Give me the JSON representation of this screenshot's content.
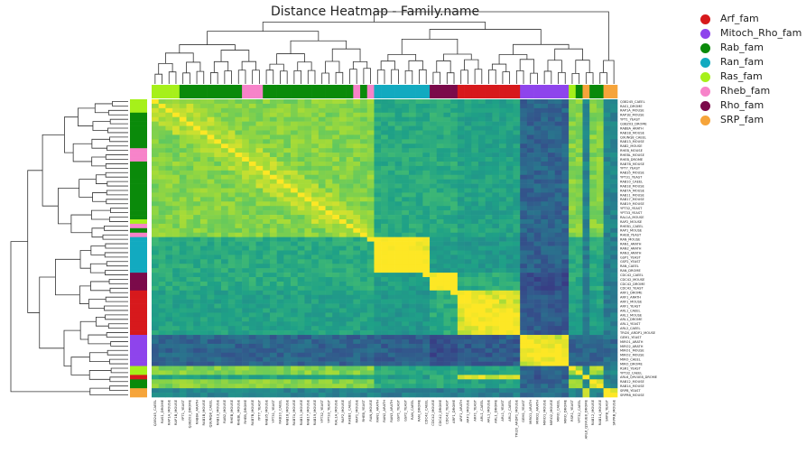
{
  "chart_data": {
    "type": "heatmap",
    "title": "Distance Heatmap - Family.name",
    "legend": {
      "placement": "top-right",
      "entries": [
        {
          "name": "Arf_fam",
          "color": "#d7191c"
        },
        {
          "name": "Mitoch_Rho_fam",
          "color": "#8e44ec"
        },
        {
          "name": "Rab_fam",
          "color": "#0a8a0a"
        },
        {
          "name": "Ran_fam",
          "color": "#12aac0"
        },
        {
          "name": "Ras_fam",
          "color": "#a6f01a"
        },
        {
          "name": "Rheb_fam",
          "color": "#f783c9"
        },
        {
          "name": "Rho_fam",
          "color": "#7b0a4a"
        },
        {
          "name": "SRP_fam",
          "color": "#f6a43a"
        }
      ]
    },
    "row_labels": [
      "Q38245_CAEEL",
      "RAS1_DROME",
      "RAP1A_MOUSE",
      "RAP1B_MOUSE",
      "YPT1_YEAST",
      "Q38Z03_DROME",
      "RAB8A_ARATH",
      "RAB1B_MOUSE",
      "Q9UNQ8_CAEEL",
      "RAB13_MOUSE",
      "RAB2_MOUSE",
      "RHEB_MOUSE",
      "RHEBL_MOUSE",
      "RHEB_DROME",
      "RAB7B_MOUSE",
      "YPT7_YEAST",
      "RAB35_MOUSE",
      "YPT31_YEAST",
      "RAB10_CAEEL",
      "RAB18_MOUSE",
      "RAB7A_MOUSE",
      "RAB11_MOUSE",
      "RAB17_MOUSE",
      "RAB19_MOUSE",
      "YPT32_YEAST",
      "YPT33_YEAST",
      "RAL1A_MOUSE",
      "RAP2_MOUSE",
      "RHEB1_CAEEL",
      "RAP1_MOUSE",
      "RHEB_YEAST",
      "RAN_MOUSE",
      "RAN1_ARATH",
      "RAN2_ARATH",
      "RAN3_ARATH",
      "GSP1_YEAST",
      "GSP2_YEAST",
      "RAN_CAEEL",
      "RAN_DROME",
      "CDC42_CAEEL",
      "CDC42_MOUSE",
      "CDC42_DROME",
      "CDC42_YEAST",
      "ARF1_DROME",
      "ARF1_ARATH",
      "ARF1_MOUSE",
      "ARF1_YEAST",
      "ARL1_CAEEL",
      "ARL1_MOUSE",
      "ARL1_DROME",
      "ARL1_YEAST",
      "ARL2_CAEEL",
      "TRI20_ARDP1_MOUSE",
      "GEM1_YEAST",
      "MIRO1_ARATH",
      "MIRO2_ARATH",
      "MIRO1_MOUSE",
      "MIRO2_MOUSE",
      "MIRO_CAEEL",
      "MIRO_DROME",
      "RSR1_YEAST",
      "YPT32_CAEEL",
      "ARL6_Q9VUE8_DROME",
      "RAB12_MOUSE",
      "RAB14_MOUSE",
      "SRPB_YEAST",
      "SRPRB_MOUSE"
    ],
    "col_labels": [
      "Q38245_CAEEL",
      "RAS1_DROME",
      "RAP1A_MOUSE",
      "RAP1B_MOUSE",
      "YPT1_YEAST",
      "Q38Z03_DROME",
      "RAB8A_ARATH",
      "RAB1B_MOUSE",
      "Q9UNQ8_CAEEL",
      "RAB13_MOUSE",
      "RAB2_MOUSE",
      "RHEB_MOUSE",
      "RHEBL_MOUSE",
      "RHEB_DROME",
      "RAB7B_MOUSE",
      "YPT7_YEAST",
      "RAB35_MOUSE",
      "YPT31_YEAST",
      "RAB10_CAEEL",
      "RAB18_MOUSE",
      "RAB7A_MOUSE",
      "RAB11_MOUSE",
      "RAB17_MOUSE",
      "RAB19_MOUSE",
      "YPT32_YEAST",
      "YPT33_YEAST",
      "RAL1A_MOUSE",
      "RAP2_MOUSE",
      "RHEB1_CAEEL",
      "RAP1_MOUSE",
      "RHEB_YEAST",
      "RAN_MOUSE",
      "RAN1_ARATH",
      "RAN2_ARATH",
      "RAN3_ARATH",
      "GSP1_YEAST",
      "GSP2_YEAST",
      "RAN_CAEEL",
      "RAN_DROME",
      "CDC42_CAEEL",
      "CDC42_MOUSE",
      "CDC42_DROME",
      "CDC42_YEAST",
      "ARF1_DROME",
      "ARF1_ARATH",
      "ARF1_MOUSE",
      "ARF1_YEAST",
      "ARL1_CAEEL",
      "ARL1_MOUSE",
      "ARL1_DROME",
      "ARL1_YEAST",
      "ARL2_CAEEL",
      "TRI20_ARDP1_MOUSE",
      "GEM1_YEAST",
      "MIRO1_ARATH",
      "MIRO2_ARATH",
      "MIRO1_MOUSE",
      "MIRO2_MOUSE",
      "MIRO_CAEEL",
      "MIRO_DROME",
      "RSR1_YEAST",
      "YPT32_CAEEL",
      "ARL6_Q9VUE8_DROME",
      "RAB12_MOUSE",
      "RAB14_MOUSE",
      "SRPB_YEAST",
      "SRPRB_MOUSE"
    ],
    "row_families": [
      "Ras_fam",
      "Ras_fam",
      "Ras_fam",
      "Rab_fam",
      "Rab_fam",
      "Rab_fam",
      "Rab_fam",
      "Rab_fam",
      "Rab_fam",
      "Rab_fam",
      "Rab_fam",
      "Rheb_fam",
      "Rheb_fam",
      "Rheb_fam",
      "Rab_fam",
      "Rab_fam",
      "Rab_fam",
      "Rab_fam",
      "Rab_fam",
      "Rab_fam",
      "Rab_fam",
      "Rab_fam",
      "Rab_fam",
      "Rab_fam",
      "Rab_fam",
      "Rab_fam",
      "Rab_fam",
      "Ras_fam",
      "Rheb_fam",
      "Rab_fam",
      "Rheb_fam",
      "Ran_fam",
      "Ran_fam",
      "Ran_fam",
      "Ran_fam",
      "Ran_fam",
      "Ran_fam",
      "Ran_fam",
      "Ran_fam",
      "Rho_fam",
      "Rho_fam",
      "Rho_fam",
      "Rho_fam",
      "Arf_fam",
      "Arf_fam",
      "Arf_fam",
      "Arf_fam",
      "Arf_fam",
      "Arf_fam",
      "Arf_fam",
      "Arf_fam",
      "Arf_fam",
      "Arf_fam",
      "Mitoch_Rho_fam",
      "Mitoch_Rho_fam",
      "Mitoch_Rho_fam",
      "Mitoch_Rho_fam",
      "Mitoch_Rho_fam",
      "Mitoch_Rho_fam",
      "Mitoch_Rho_fam",
      "Ras_fam",
      "Ras_fam",
      "Arf_fam",
      "Rab_fam",
      "Rab_fam",
      "SRP_fam",
      "SRP_fam"
    ],
    "col_families": [
      "Ras_fam",
      "Ras_fam",
      "Ras_fam",
      "Ras_fam",
      "Rab_fam",
      "Rab_fam",
      "Rab_fam",
      "Rab_fam",
      "Rab_fam",
      "Rab_fam",
      "Rab_fam",
      "Rab_fam",
      "Rab_fam",
      "Rheb_fam",
      "Rheb_fam",
      "Rheb_fam",
      "Rab_fam",
      "Rab_fam",
      "Rab_fam",
      "Rab_fam",
      "Rab_fam",
      "Rab_fam",
      "Rab_fam",
      "Rab_fam",
      "Rab_fam",
      "Rab_fam",
      "Rab_fam",
      "Rab_fam",
      "Rab_fam",
      "Rheb_fam",
      "Rab_fam",
      "Rheb_fam",
      "Ran_fam",
      "Ran_fam",
      "Ran_fam",
      "Ran_fam",
      "Ran_fam",
      "Ran_fam",
      "Ran_fam",
      "Ran_fam",
      "Rho_fam",
      "Rho_fam",
      "Rho_fam",
      "Rho_fam",
      "Arf_fam",
      "Arf_fam",
      "Arf_fam",
      "Arf_fam",
      "Arf_fam",
      "Arf_fam",
      "Arf_fam",
      "Arf_fam",
      "Arf_fam",
      "Mitoch_Rho_fam",
      "Mitoch_Rho_fam",
      "Mitoch_Rho_fam",
      "Mitoch_Rho_fam",
      "Mitoch_Rho_fam",
      "Mitoch_Rho_fam",
      "Mitoch_Rho_fam",
      "Ras_fam",
      "Rab_fam",
      "SRP_fam",
      "Rab_fam",
      "Rab_fam",
      "SRP_fam",
      "SRP_fam"
    ],
    "block_cluster_index": {
      "Ras_fam": 0,
      "Rab_fam": 0,
      "Rheb_fam": 0,
      "Ran_fam": 1,
      "Rho_fam": 2,
      "Arf_fam": 3,
      "Mitoch_Rho_fam": 4,
      "SRP_fam": 5
    },
    "similarity_scale": [
      0,
      1
    ],
    "cluster_similarity": [
      [
        0.78,
        0.55,
        0.55,
        0.5,
        0.22,
        0.35
      ],
      [
        0.55,
        0.97,
        0.48,
        0.45,
        0.2,
        0.32
      ],
      [
        0.55,
        0.48,
        0.95,
        0.55,
        0.12,
        0.3
      ],
      [
        0.5,
        0.45,
        0.55,
        0.92,
        0.18,
        0.32
      ],
      [
        0.22,
        0.2,
        0.12,
        0.18,
        0.92,
        0.25
      ],
      [
        0.35,
        0.32,
        0.3,
        0.32,
        0.25,
        0.85
      ]
    ],
    "colormap": [
      "#3b2f80",
      "#33568c",
      "#25838e",
      "#1fa187",
      "#4ac16d",
      "#a0da39",
      "#fde725"
    ]
  }
}
